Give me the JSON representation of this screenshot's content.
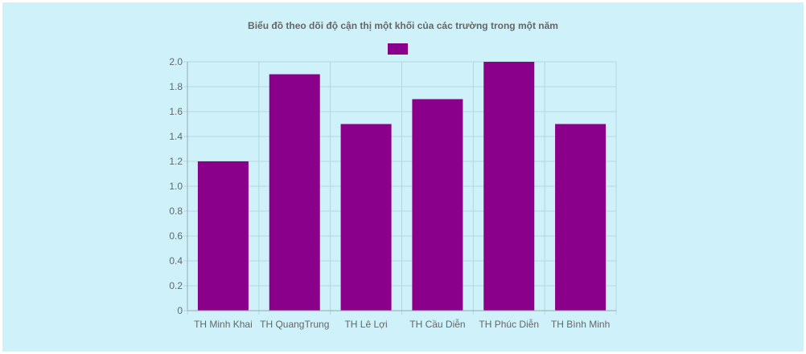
{
  "chart_data": {
    "type": "bar",
    "title": "Biểu đồ theo dõi độ cận thị một khối của các trường trong một năm",
    "categories": [
      "TH Minh Khai",
      "TH QuangTrung",
      "TH Lê Lợi",
      "TH Cầu Diễn",
      "TH Phúc Diễn",
      "TH Bình Minh"
    ],
    "series": [
      {
        "values": [
          1.2,
          1.9,
          1.5,
          1.7,
          2.0,
          1.5
        ]
      }
    ],
    "y_ticks": [
      "0",
      "0.2",
      "0.4",
      "0.6",
      "0.8",
      "1.0",
      "1.2",
      "1.4",
      "1.6",
      "1.8",
      "2.0"
    ],
    "ylim": [
      0,
      2.0
    ],
    "grid": true,
    "legend": "top-center",
    "colors": {
      "bar": "#8b008b",
      "background": "#cef1fa",
      "text": "#666666"
    }
  }
}
